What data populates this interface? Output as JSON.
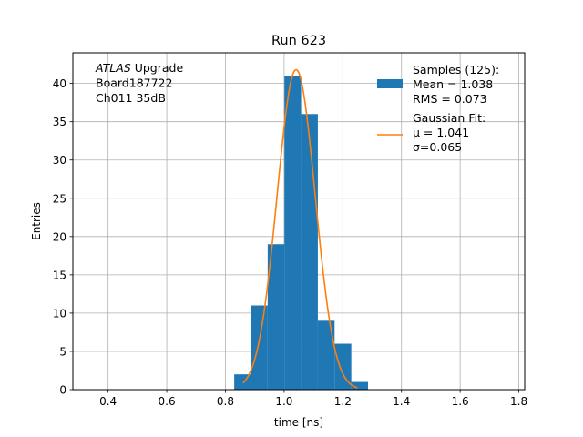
{
  "chart_data": {
    "type": "bar",
    "title": "Run 623",
    "xlabel": "time [ns]",
    "ylabel": "Entries",
    "xlim": [
      0.28,
      1.82
    ],
    "ylim": [
      0,
      44
    ],
    "grid": true,
    "xticks": [
      0.4,
      0.6,
      0.8,
      1.0,
      1.2,
      1.4,
      1.6,
      1.8
    ],
    "xtick_labels": [
      "0.4",
      "0.6",
      "0.8",
      "1.0",
      "1.2",
      "1.4",
      "1.6",
      "1.8"
    ],
    "yticks": [
      0,
      5,
      10,
      15,
      20,
      25,
      30,
      35,
      40
    ],
    "ytick_labels": [
      "0",
      "5",
      "10",
      "15",
      "20",
      "25",
      "30",
      "35",
      "40"
    ],
    "histogram": {
      "bin_edges": [
        0.83,
        0.887,
        0.944,
        1.001,
        1.058,
        1.115,
        1.172,
        1.229,
        1.286
      ],
      "counts": [
        2,
        11,
        19,
        41,
        36,
        9,
        6,
        1
      ],
      "color": "#1f77b4"
    },
    "fit": {
      "type": "gaussian",
      "mu": 1.041,
      "sigma": 0.065,
      "amplitude": 41.8,
      "x_range": [
        0.86,
        1.25
      ],
      "color": "#ff7f0e"
    },
    "annotation": {
      "lines": [
        {
          "italic": "ATLAS",
          "text": " Upgrade"
        },
        {
          "italic": "",
          "text": " Board187722"
        },
        {
          "italic": "",
          "text": " Ch011 35dB"
        }
      ]
    },
    "legend": {
      "placement": "top-right",
      "entries": [
        {
          "kind": "patch",
          "color": "#1f77b4",
          "lines": [
            "Samples (125):",
            " Mean = 1.038",
            " RMS = 0.073"
          ]
        },
        {
          "kind": "line",
          "color": "#ff7f0e",
          "lines": [
            "Gaussian Fit:",
            " μ = 1.041",
            " σ=0.065"
          ]
        }
      ]
    }
  }
}
